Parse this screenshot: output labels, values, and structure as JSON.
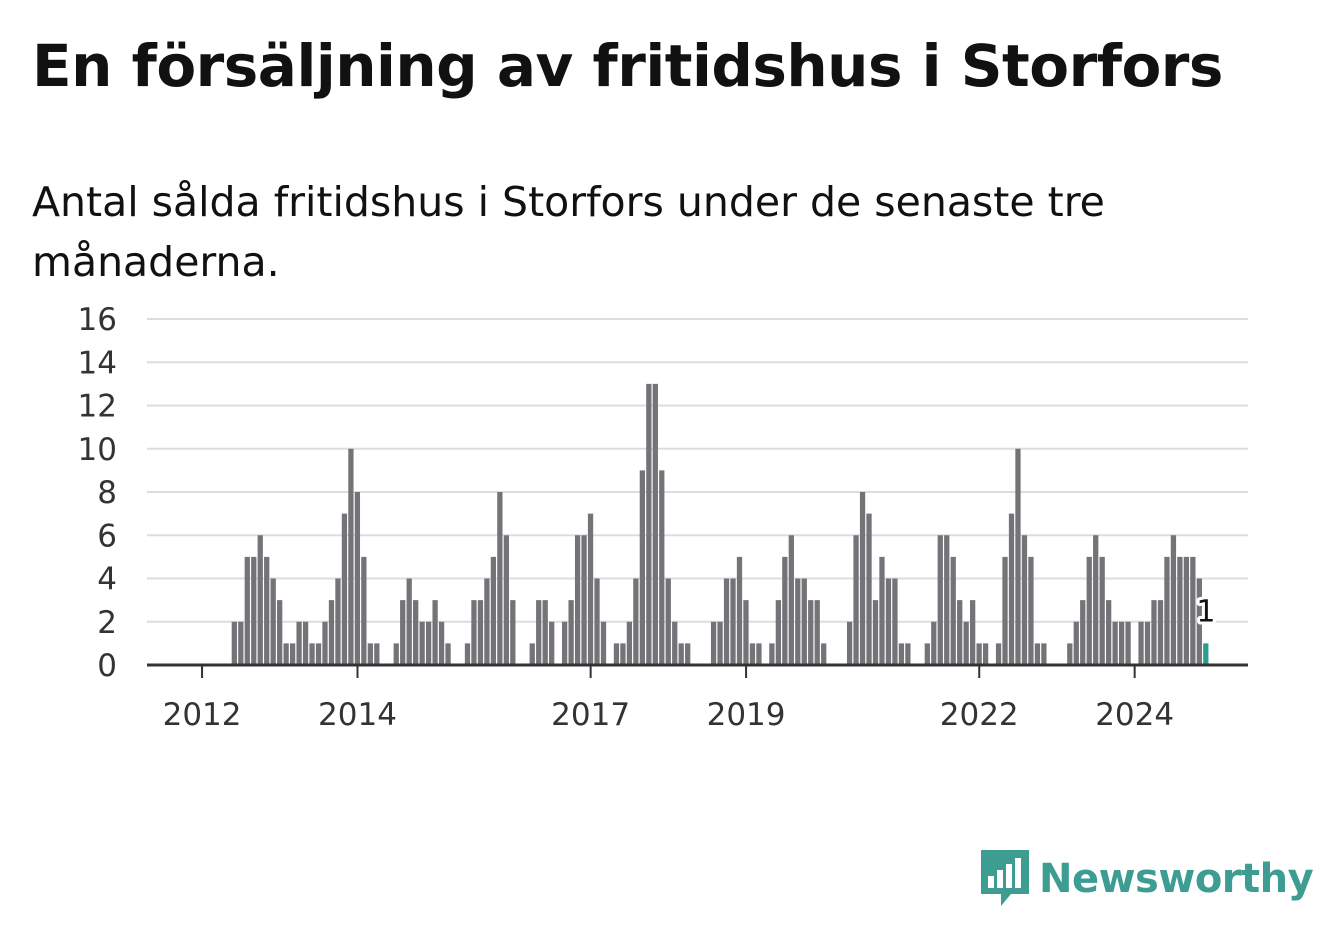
{
  "header": {
    "title": "En försäljning av fritidshus i Storfors",
    "subtitle": "Antal sålda fritidshus i Storfors under de senaste tre månaderna."
  },
  "brand": {
    "name": "Newsworthy",
    "icon": "newsworthy-logo-icon",
    "color": "#3d9d93"
  },
  "colors": {
    "bar": "#747378",
    "highlight": "#2a9d8f",
    "grid": "#dddddd",
    "axis": "#333333"
  },
  "chart_data": {
    "type": "bar",
    "title": "En försäljning av fritidshus i Storfors",
    "subtitle": "Antal sålda fritidshus i Storfors under de senaste tre månaderna.",
    "xlabel": "",
    "ylabel": "",
    "ylim": [
      0,
      16
    ],
    "yticks": [
      0,
      2,
      4,
      6,
      8,
      10,
      12,
      14,
      16
    ],
    "grid": true,
    "x_start": "2011-05",
    "x_end": "2025-07",
    "xticks": [
      {
        "label": "2012",
        "date": "2012-01"
      },
      {
        "label": "2014",
        "date": "2014-01"
      },
      {
        "label": "2017",
        "date": "2017-01"
      },
      {
        "label": "2019",
        "date": "2019-01"
      },
      {
        "label": "2022",
        "date": "2022-01"
      },
      {
        "label": "2024",
        "date": "2024-01"
      }
    ],
    "series": [
      {
        "values": [
          {
            "date": "2012-02",
            "value": 0
          },
          {
            "date": "2012-03",
            "value": 0
          },
          {
            "date": "2012-04",
            "value": 0
          },
          {
            "date": "2012-05",
            "value": 0
          },
          {
            "date": "2012-06",
            "value": 2
          },
          {
            "date": "2012-07",
            "value": 2
          },
          {
            "date": "2012-08",
            "value": 5
          },
          {
            "date": "2012-09",
            "value": 5
          },
          {
            "date": "2012-10",
            "value": 6
          },
          {
            "date": "2012-11",
            "value": 5
          },
          {
            "date": "2012-12",
            "value": 4
          },
          {
            "date": "2013-01",
            "value": 3
          },
          {
            "date": "2013-02",
            "value": 1
          },
          {
            "date": "2013-03",
            "value": 1
          },
          {
            "date": "2013-04",
            "value": 2
          },
          {
            "date": "2013-05",
            "value": 2
          },
          {
            "date": "2013-06",
            "value": 1
          },
          {
            "date": "2013-07",
            "value": 1
          },
          {
            "date": "2013-08",
            "value": 2
          },
          {
            "date": "2013-09",
            "value": 3
          },
          {
            "date": "2013-10",
            "value": 4
          },
          {
            "date": "2013-11",
            "value": 7
          },
          {
            "date": "2013-12",
            "value": 10
          },
          {
            "date": "2014-01",
            "value": 8
          },
          {
            "date": "2014-02",
            "value": 5
          },
          {
            "date": "2014-03",
            "value": 1
          },
          {
            "date": "2014-04",
            "value": 1
          },
          {
            "date": "2014-05",
            "value": 0
          },
          {
            "date": "2014-06",
            "value": 0
          },
          {
            "date": "2014-07",
            "value": 1
          },
          {
            "date": "2014-08",
            "value": 3
          },
          {
            "date": "2014-09",
            "value": 4
          },
          {
            "date": "2014-10",
            "value": 3
          },
          {
            "date": "2014-11",
            "value": 2
          },
          {
            "date": "2014-12",
            "value": 2
          },
          {
            "date": "2015-01",
            "value": 3
          },
          {
            "date": "2015-02",
            "value": 2
          },
          {
            "date": "2015-03",
            "value": 1
          },
          {
            "date": "2015-04",
            "value": 0
          },
          {
            "date": "2015-05",
            "value": 0
          },
          {
            "date": "2015-06",
            "value": 1
          },
          {
            "date": "2015-07",
            "value": 3
          },
          {
            "date": "2015-08",
            "value": 3
          },
          {
            "date": "2015-09",
            "value": 4
          },
          {
            "date": "2015-10",
            "value": 5
          },
          {
            "date": "2015-11",
            "value": 8
          },
          {
            "date": "2015-12",
            "value": 6
          },
          {
            "date": "2016-01",
            "value": 3
          },
          {
            "date": "2016-02",
            "value": 0
          },
          {
            "date": "2016-03",
            "value": 0
          },
          {
            "date": "2016-04",
            "value": 1
          },
          {
            "date": "2016-05",
            "value": 3
          },
          {
            "date": "2016-06",
            "value": 3
          },
          {
            "date": "2016-07",
            "value": 2
          },
          {
            "date": "2016-08",
            "value": 0
          },
          {
            "date": "2016-09",
            "value": 2
          },
          {
            "date": "2016-10",
            "value": 3
          },
          {
            "date": "2016-11",
            "value": 6
          },
          {
            "date": "2016-12",
            "value": 6
          },
          {
            "date": "2017-01",
            "value": 7
          },
          {
            "date": "2017-02",
            "value": 4
          },
          {
            "date": "2017-03",
            "value": 2
          },
          {
            "date": "2017-04",
            "value": 0
          },
          {
            "date": "2017-05",
            "value": 1
          },
          {
            "date": "2017-06",
            "value": 1
          },
          {
            "date": "2017-07",
            "value": 2
          },
          {
            "date": "2017-08",
            "value": 4
          },
          {
            "date": "2017-09",
            "value": 9
          },
          {
            "date": "2017-10",
            "value": 13
          },
          {
            "date": "2017-11",
            "value": 13
          },
          {
            "date": "2017-12",
            "value": 9
          },
          {
            "date": "2018-01",
            "value": 4
          },
          {
            "date": "2018-02",
            "value": 2
          },
          {
            "date": "2018-03",
            "value": 1
          },
          {
            "date": "2018-04",
            "value": 1
          },
          {
            "date": "2018-05",
            "value": 0
          },
          {
            "date": "2018-06",
            "value": 0
          },
          {
            "date": "2018-07",
            "value": 0
          },
          {
            "date": "2018-08",
            "value": 2
          },
          {
            "date": "2018-09",
            "value": 2
          },
          {
            "date": "2018-10",
            "value": 4
          },
          {
            "date": "2018-11",
            "value": 4
          },
          {
            "date": "2018-12",
            "value": 5
          },
          {
            "date": "2019-01",
            "value": 3
          },
          {
            "date": "2019-02",
            "value": 1
          },
          {
            "date": "2019-03",
            "value": 1
          },
          {
            "date": "2019-04",
            "value": 0
          },
          {
            "date": "2019-05",
            "value": 1
          },
          {
            "date": "2019-06",
            "value": 3
          },
          {
            "date": "2019-07",
            "value": 5
          },
          {
            "date": "2019-08",
            "value": 6
          },
          {
            "date": "2019-09",
            "value": 4
          },
          {
            "date": "2019-10",
            "value": 4
          },
          {
            "date": "2019-11",
            "value": 3
          },
          {
            "date": "2019-12",
            "value": 3
          },
          {
            "date": "2020-01",
            "value": 1
          },
          {
            "date": "2020-02",
            "value": 0
          },
          {
            "date": "2020-03",
            "value": 0
          },
          {
            "date": "2020-04",
            "value": 0
          },
          {
            "date": "2020-05",
            "value": 2
          },
          {
            "date": "2020-06",
            "value": 6
          },
          {
            "date": "2020-07",
            "value": 8
          },
          {
            "date": "2020-08",
            "value": 7
          },
          {
            "date": "2020-09",
            "value": 3
          },
          {
            "date": "2020-10",
            "value": 5
          },
          {
            "date": "2020-11",
            "value": 4
          },
          {
            "date": "2020-12",
            "value": 4
          },
          {
            "date": "2021-01",
            "value": 1
          },
          {
            "date": "2021-02",
            "value": 1
          },
          {
            "date": "2021-03",
            "value": 0
          },
          {
            "date": "2021-04",
            "value": 0
          },
          {
            "date": "2021-05",
            "value": 1
          },
          {
            "date": "2021-06",
            "value": 2
          },
          {
            "date": "2021-07",
            "value": 6
          },
          {
            "date": "2021-08",
            "value": 6
          },
          {
            "date": "2021-09",
            "value": 5
          },
          {
            "date": "2021-10",
            "value": 3
          },
          {
            "date": "2021-11",
            "value": 2
          },
          {
            "date": "2021-12",
            "value": 3
          },
          {
            "date": "2022-01",
            "value": 1
          },
          {
            "date": "2022-02",
            "value": 1
          },
          {
            "date": "2022-03",
            "value": 0
          },
          {
            "date": "2022-04",
            "value": 1
          },
          {
            "date": "2022-05",
            "value": 5
          },
          {
            "date": "2022-06",
            "value": 7
          },
          {
            "date": "2022-07",
            "value": 10
          },
          {
            "date": "2022-08",
            "value": 6
          },
          {
            "date": "2022-09",
            "value": 5
          },
          {
            "date": "2022-10",
            "value": 1
          },
          {
            "date": "2022-11",
            "value": 1
          },
          {
            "date": "2022-12",
            "value": 0
          },
          {
            "date": "2023-01",
            "value": 0
          },
          {
            "date": "2023-02",
            "value": 0
          },
          {
            "date": "2023-03",
            "value": 1
          },
          {
            "date": "2023-04",
            "value": 2
          },
          {
            "date": "2023-05",
            "value": 3
          },
          {
            "date": "2023-06",
            "value": 5
          },
          {
            "date": "2023-07",
            "value": 6
          },
          {
            "date": "2023-08",
            "value": 5
          },
          {
            "date": "2023-09",
            "value": 3
          },
          {
            "date": "2023-10",
            "value": 2
          },
          {
            "date": "2023-11",
            "value": 2
          },
          {
            "date": "2023-12",
            "value": 2
          },
          {
            "date": "2024-01",
            "value": 0
          },
          {
            "date": "2024-02",
            "value": 2
          },
          {
            "date": "2024-03",
            "value": 2
          },
          {
            "date": "2024-04",
            "value": 3
          },
          {
            "date": "2024-05",
            "value": 3
          },
          {
            "date": "2024-06",
            "value": 5
          },
          {
            "date": "2024-07",
            "value": 6
          },
          {
            "date": "2024-08",
            "value": 5
          },
          {
            "date": "2024-09",
            "value": 5
          },
          {
            "date": "2024-10",
            "value": 5
          },
          {
            "date": "2024-11",
            "value": 4
          },
          {
            "date": "2024-12",
            "value": 1
          }
        ]
      }
    ],
    "annotations": [
      {
        "date": "2024-12",
        "value": 1,
        "text": "1"
      }
    ]
  }
}
